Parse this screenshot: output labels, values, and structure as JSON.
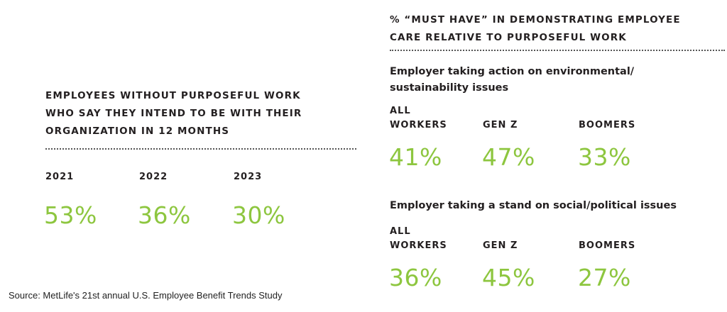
{
  "left": {
    "heading_lines": [
      "EMPLOYEES WITHOUT PURPOSEFUL WORK",
      "WHO SAY THEY INTEND TO BE WITH THEIR",
      "ORGANIZATION IN 12 MONTHS"
    ],
    "columns": [
      {
        "label": "2021",
        "value": "53%"
      },
      {
        "label": "2022",
        "value": "36%"
      },
      {
        "label": "2023",
        "value": "30%"
      }
    ]
  },
  "right": {
    "heading_lines": [
      "% “MUST HAVE” IN DEMONSTRATING EMPLOYEE",
      "CARE RELATIVE TO PURPOSEFUL WORK"
    ],
    "sections": [
      {
        "title_lines": [
          "Employer taking action on environmental/",
          "sustainability issues"
        ],
        "columns": [
          {
            "label_top": "ALL",
            "label": "WORKERS",
            "value": "41%"
          },
          {
            "label_top": "",
            "label": "GEN Z",
            "value": "47%"
          },
          {
            "label_top": "",
            "label": "BOOMERS",
            "value": "33%"
          }
        ]
      },
      {
        "title_lines": [
          "Employer taking a stand on social/political issues"
        ],
        "columns": [
          {
            "label_top": "ALL",
            "label": "WORKERS",
            "value": "36%"
          },
          {
            "label_top": "",
            "label": "GEN Z",
            "value": "45%"
          },
          {
            "label_top": "",
            "label": "BOOMERS",
            "value": "27%"
          }
        ]
      }
    ]
  },
  "source": "Source: MetLife's 21st annual U.S. Employee Benefit Trends Study",
  "colors": {
    "accent": "#8dc63f",
    "text": "#231f20"
  }
}
